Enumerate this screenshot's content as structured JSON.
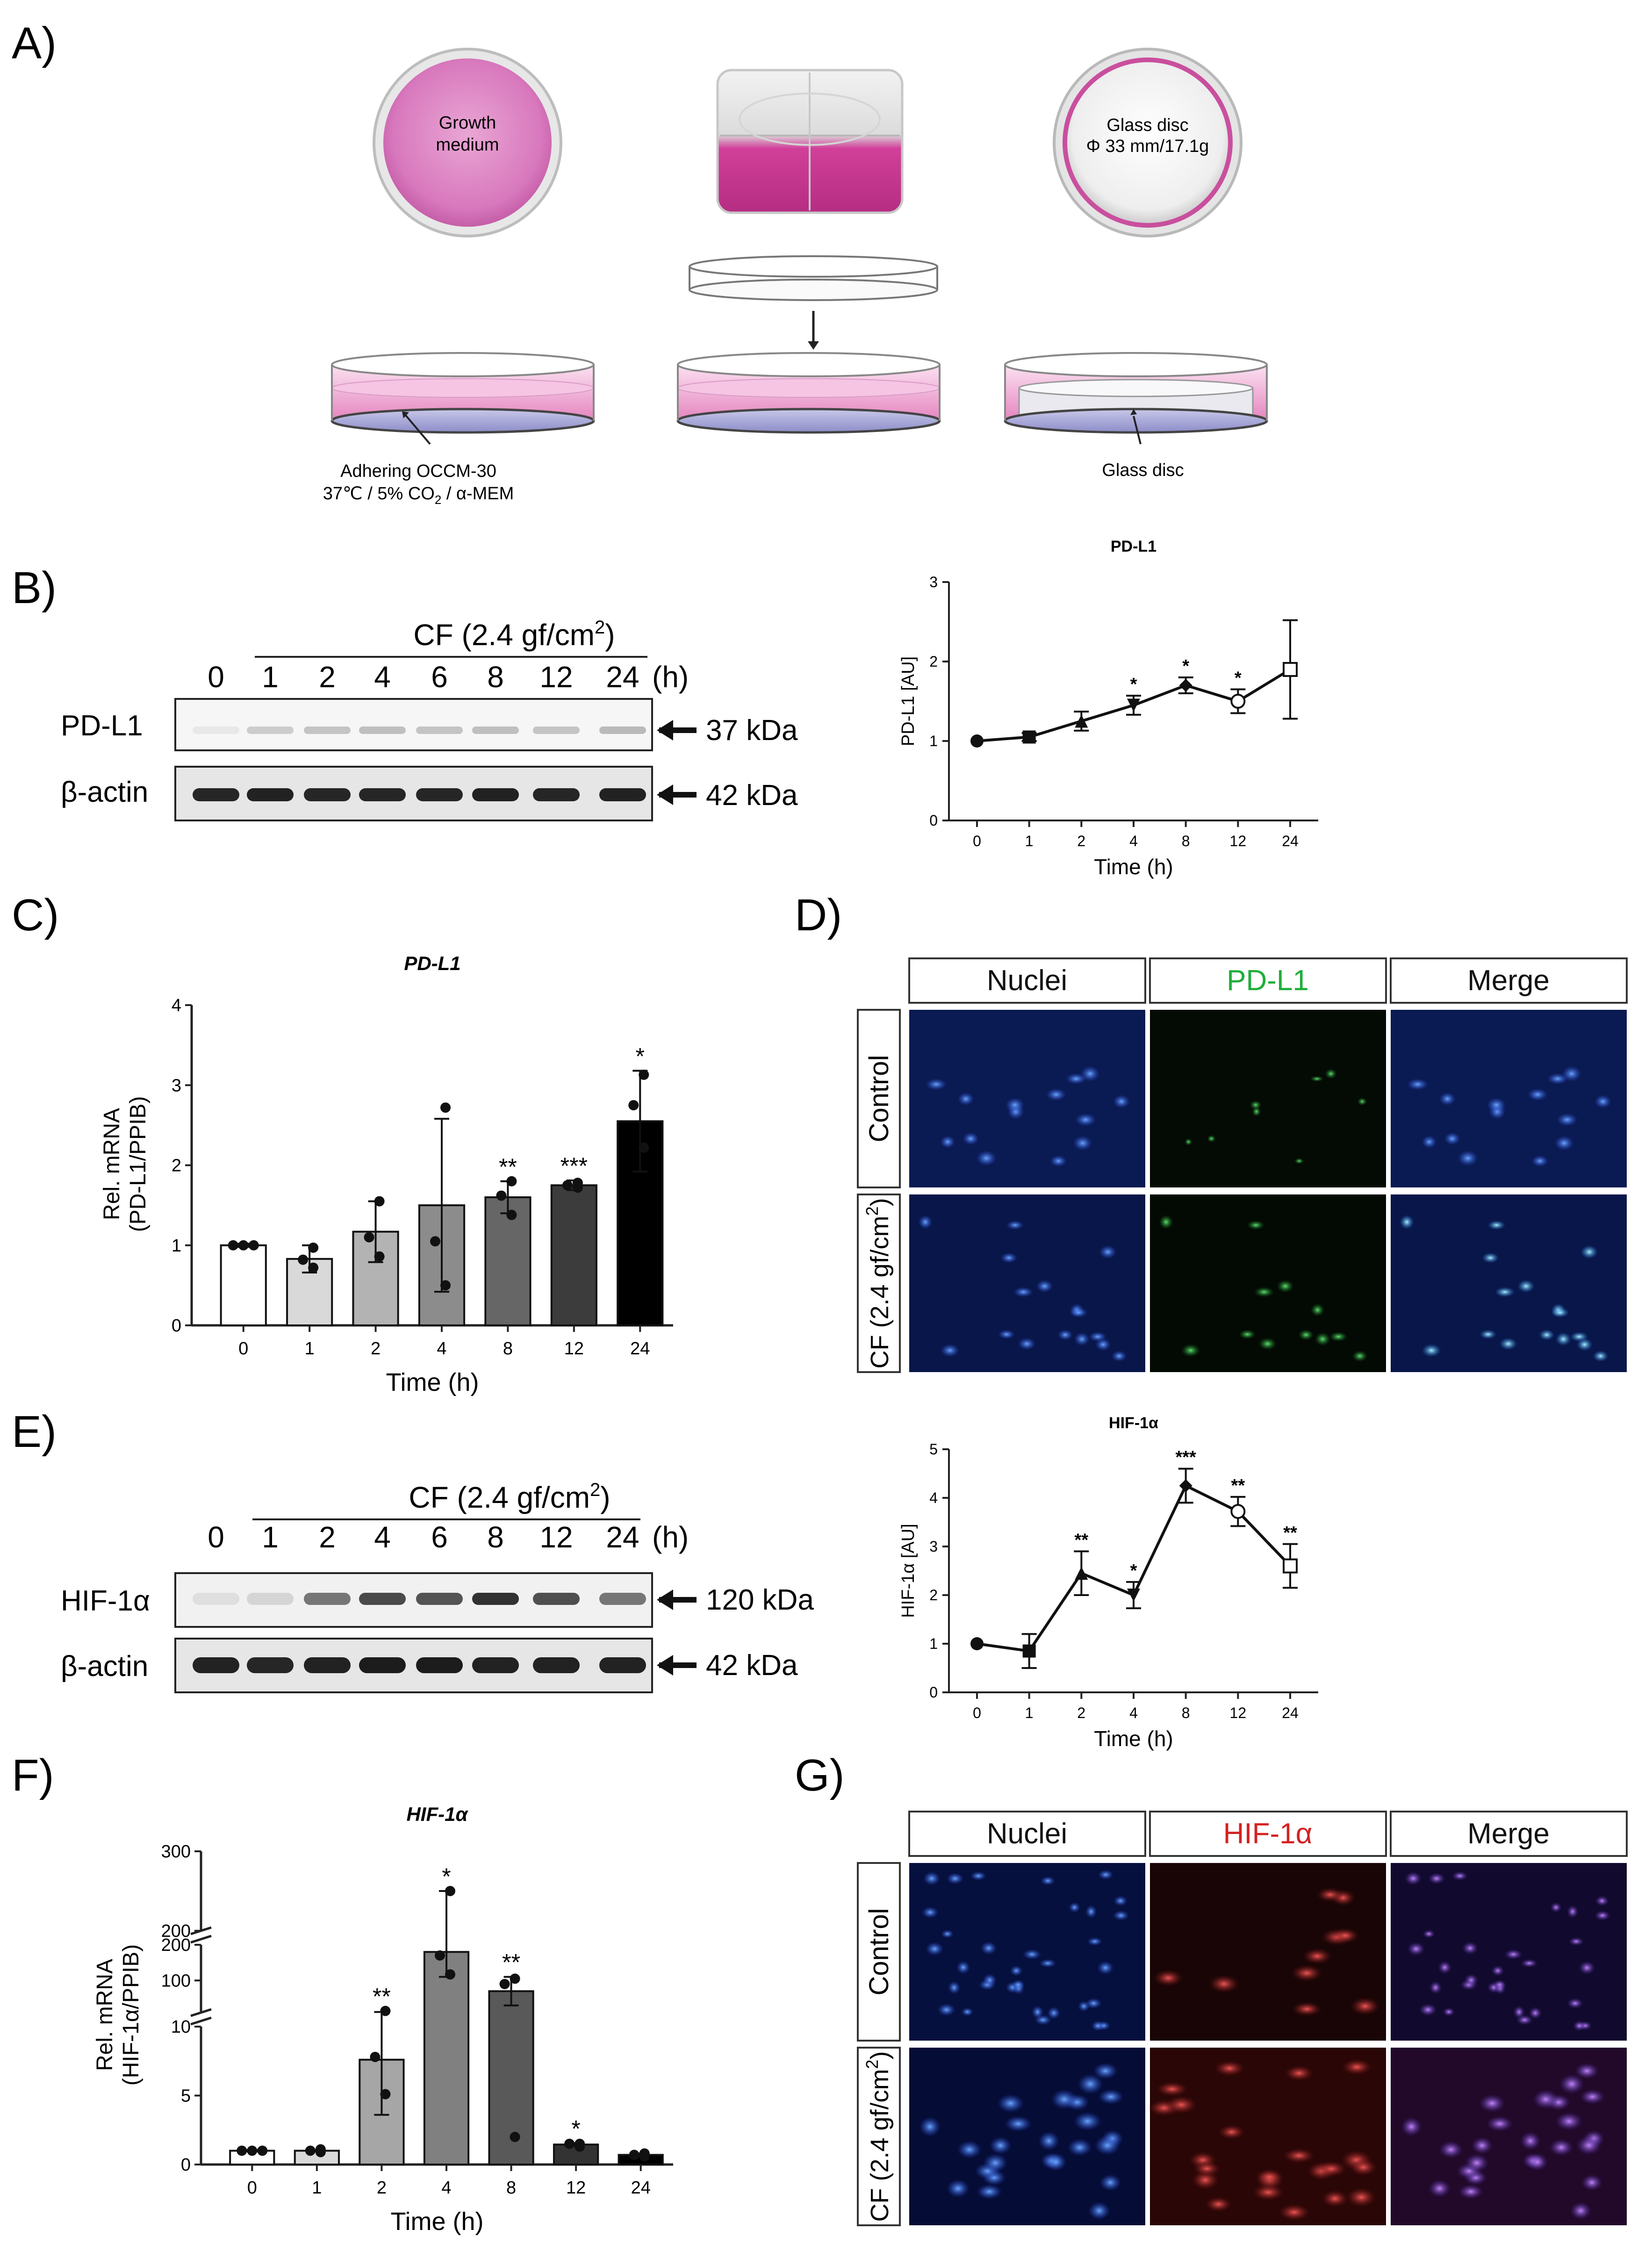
{
  "panels": {
    "A": "A)",
    "B": "B)",
    "C": "C)",
    "D": "D)",
    "E": "E)",
    "F": "F)",
    "G": "G)"
  },
  "panelA": {
    "dish1_line1": "Growth",
    "dish1_line2": "medium",
    "dish3_line1": "Glass disc",
    "dish3_line2": "Φ 33 mm/17.1g",
    "cap1_line1": "Adhering OCCM-30",
    "cap1_line2a": "37℃ / 5% CO",
    "cap1_sub": "2",
    "cap1_line2b": " / α-MEM",
    "cap3": "Glass disc"
  },
  "blotB": {
    "cf_label": "CF (2.4 gf/cm",
    "cf_sup": "2",
    "cf_close": ")",
    "times": [
      "0",
      "1",
      "2",
      "4",
      "6",
      "8",
      "12",
      "24"
    ],
    "unit": "(h)",
    "rows": [
      {
        "name": "PD-L1",
        "kda": "37 kDa"
      },
      {
        "name": "β-actin",
        "kda": "42 kDa"
      }
    ]
  },
  "blotE": {
    "cf_label": "CF (2.4 gf/cm",
    "cf_sup": "2",
    "cf_close": ")",
    "times": [
      "0",
      "1",
      "2",
      "4",
      "6",
      "8",
      "12",
      "24"
    ],
    "unit": "(h)",
    "rows": [
      {
        "name": "HIF-1α",
        "kda": "120 kDa"
      },
      {
        "name": "β-actin",
        "kda": "42 kDa"
      }
    ]
  },
  "chart_data": [
    {
      "id": "B-right",
      "type": "line",
      "title": "PD-L1",
      "xlabel": "Time (h)",
      "ylabel": "PD-L1 [AU]",
      "categories": [
        "0",
        "1",
        "2",
        "4",
        "8",
        "12",
        "24"
      ],
      "values": [
        1.0,
        1.05,
        1.25,
        1.45,
        1.7,
        1.5,
        1.9
      ],
      "errors": [
        0,
        0.05,
        0.12,
        0.12,
        0.1,
        0.15,
        0.62
      ],
      "annotations": [
        "",
        "",
        "",
        "*",
        "*",
        "*",
        ""
      ],
      "ylim": [
        0,
        3
      ],
      "yticks": [
        "0",
        "1",
        "2",
        "3"
      ]
    },
    {
      "id": "C",
      "type": "bar",
      "title": "PD-L1",
      "xlabel": "Time (h)",
      "ylabel": "Rel. mRNA (PD-L1/PPIB)",
      "categories": [
        "0",
        "1",
        "2",
        "4",
        "8",
        "12",
        "24"
      ],
      "values": [
        1.0,
        0.83,
        1.17,
        1.5,
        1.6,
        1.75,
        2.55
      ],
      "errors": [
        0.02,
        0.17,
        0.38,
        1.08,
        0.2,
        0.06,
        0.63
      ],
      "points": [
        [
          1,
          1,
          1
        ],
        [
          0.72,
          0.82,
          0.97
        ],
        [
          0.86,
          1.1,
          1.55
        ],
        [
          0.5,
          1.05,
          2.72
        ],
        [
          1.38,
          1.62,
          1.8
        ],
        [
          1.72,
          1.75,
          1.78
        ],
        [
          2.22,
          2.75,
          3.13
        ]
      ],
      "annotations": [
        "",
        "",
        "",
        "",
        "**",
        "***",
        "*"
      ],
      "fills": [
        "#ffffff",
        "#d9d9d9",
        "#b3b3b3",
        "#8c8c8c",
        "#666666",
        "#3c3c3c",
        "#000000"
      ],
      "ylim": [
        0,
        4
      ],
      "yticks": [
        "0",
        "1",
        "2",
        "3",
        "4"
      ]
    },
    {
      "id": "E-right",
      "type": "line",
      "title": "HIF-1α",
      "xlabel": "Time (h)",
      "ylabel": "HIF-1α [AU]",
      "categories": [
        "0",
        "1",
        "2",
        "4",
        "8",
        "12",
        "24"
      ],
      "values": [
        1.0,
        0.85,
        2.45,
        2.0,
        4.25,
        3.72,
        2.6
      ],
      "errors": [
        0,
        0.35,
        0.45,
        0.27,
        0.35,
        0.3,
        0.45
      ],
      "annotations": [
        "",
        "",
        "**",
        "*",
        "***",
        "**",
        "**"
      ],
      "ylim": [
        0,
        5
      ],
      "yticks": [
        "0",
        "1",
        "2",
        "3",
        "4",
        "5"
      ]
    },
    {
      "id": "F",
      "type": "bar",
      "title": "HIF-1α",
      "xlabel": "Time (h)",
      "ylabel": "Rel. mRNA (HIF-1α/PPIB)",
      "categories": [
        "0",
        "1",
        "2",
        "4",
        "8",
        "12",
        "24"
      ],
      "values": [
        1.0,
        1.0,
        7.6,
        180,
        70,
        1.45,
        0.7
      ],
      "errors": [
        0.05,
        0.05,
        4.0,
        70,
        40,
        0.1,
        0.1
      ],
      "points": [
        [
          1,
          1,
          1
        ],
        [
          0.9,
          1.0,
          1.1
        ],
        [
          5.1,
          7.8,
          14.6
        ],
        [
          117,
          170,
          250
        ],
        [
          2.0,
          90,
          105
        ],
        [
          1.3,
          1.5,
          1.5
        ],
        [
          0.6,
          0.7,
          0.8
        ]
      ],
      "annotations": [
        "",
        "",
        "**",
        "*",
        "**",
        "*",
        ""
      ],
      "fills": [
        "#ffffff",
        "#d9d9d9",
        "#a6a6a6",
        "#808080",
        "#595959",
        "#333333",
        "#000000"
      ],
      "y_segments": [
        [
          0,
          10
        ],
        [
          10,
          200
        ],
        [
          200,
          300
        ]
      ],
      "yticks": [
        "0",
        "5",
        "10",
        "100",
        "200",
        "200",
        "300"
      ]
    }
  ],
  "panelD": {
    "cols": [
      "Nuclei",
      "PD-L1",
      "Merge"
    ],
    "col_colors": [
      "#111111",
      "#1fae3a",
      "#111111"
    ],
    "rows": [
      "Control",
      "CF (2.4 gf/cm",
      "2",
      ")"
    ]
  },
  "panelG": {
    "cols": [
      "Nuclei",
      "HIF-1α",
      "Merge"
    ],
    "col_colors": [
      "#111111",
      "#d42222",
      "#111111"
    ],
    "rows": [
      "Control",
      "CF (2.4 gf/cm",
      "2",
      ")"
    ]
  }
}
